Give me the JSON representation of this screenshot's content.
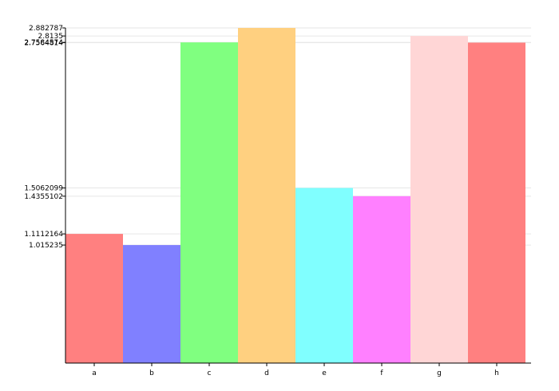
{
  "chart_data": {
    "type": "bar",
    "categories": [
      "a",
      "b",
      "c",
      "d",
      "e",
      "f",
      "g",
      "h"
    ],
    "values": [
      1.1112164,
      1.015235,
      2.7584574,
      2.882787,
      1.5062099,
      1.4355102,
      2.8135,
      2.7564814
    ],
    "colors": [
      "#ff8080",
      "#8080ff",
      "#80ff80",
      "#ffd080",
      "#80ffff",
      "#ff80ff",
      "#ffd6d6",
      "#ff8080"
    ],
    "y_tick_labels": [
      "2.882787",
      "2.8135",
      "2.7584574",
      "2.7564814",
      "1.5062099",
      "1.4355102",
      "1.1112164",
      "1.015235"
    ],
    "ylim": [
      0,
      2.882787
    ],
    "grid": true
  }
}
